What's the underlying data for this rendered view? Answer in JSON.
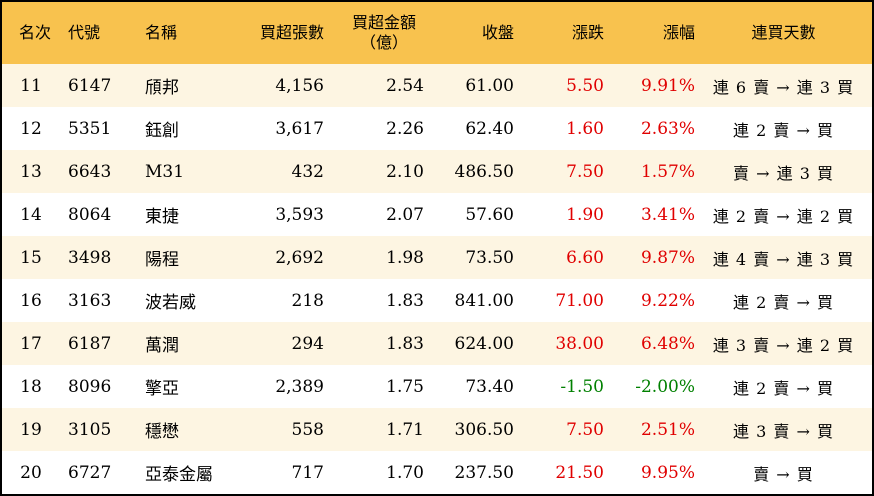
{
  "headers": {
    "rank": "名次",
    "code": "代號",
    "name": "名稱",
    "shares": "買超張數",
    "amount_l1": "買超金額",
    "amount_l2": "（億）",
    "close": "收盤",
    "change": "漲跌",
    "pct": "漲幅",
    "days": "連買天數"
  },
  "colors": {
    "header_bg": "#F8C24E",
    "row_alt_bg": "#FDF5E2",
    "up": "#E00000",
    "down": "#008000"
  },
  "rows": [
    {
      "rank": "11",
      "code": "6147",
      "name": "頎邦",
      "shares": "4,156",
      "amount": "2.54",
      "close": "61.00",
      "change": "5.50",
      "pct": "9.91%",
      "days": "連 6 賣 → 連 3 買",
      "dir": "up"
    },
    {
      "rank": "12",
      "code": "5351",
      "name": "鈺創",
      "shares": "3,617",
      "amount": "2.26",
      "close": "62.40",
      "change": "1.60",
      "pct": "2.63%",
      "days": "連 2 賣 → 買",
      "dir": "up"
    },
    {
      "rank": "13",
      "code": "6643",
      "name": "M31",
      "shares": "432",
      "amount": "2.10",
      "close": "486.50",
      "change": "7.50",
      "pct": "1.57%",
      "days": "賣 → 連 3 買",
      "dir": "up"
    },
    {
      "rank": "14",
      "code": "8064",
      "name": "東捷",
      "shares": "3,593",
      "amount": "2.07",
      "close": "57.60",
      "change": "1.90",
      "pct": "3.41%",
      "days": "連 2 賣 → 連 2 買",
      "dir": "up"
    },
    {
      "rank": "15",
      "code": "3498",
      "name": "陽程",
      "shares": "2,692",
      "amount": "1.98",
      "close": "73.50",
      "change": "6.60",
      "pct": "9.87%",
      "days": "連 4 賣 → 連 3 買",
      "dir": "up"
    },
    {
      "rank": "16",
      "code": "3163",
      "name": "波若威",
      "shares": "218",
      "amount": "1.83",
      "close": "841.00",
      "change": "71.00",
      "pct": "9.22%",
      "days": "連 2 賣 → 買",
      "dir": "up"
    },
    {
      "rank": "17",
      "code": "6187",
      "name": "萬潤",
      "shares": "294",
      "amount": "1.83",
      "close": "624.00",
      "change": "38.00",
      "pct": "6.48%",
      "days": "連 3 賣 → 連 2 買",
      "dir": "up"
    },
    {
      "rank": "18",
      "code": "8096",
      "name": "擎亞",
      "shares": "2,389",
      "amount": "1.75",
      "close": "73.40",
      "change": "-1.50",
      "pct": "-2.00%",
      "days": "連 2 賣 → 買",
      "dir": "down"
    },
    {
      "rank": "19",
      "code": "3105",
      "name": "穩懋",
      "shares": "558",
      "amount": "1.71",
      "close": "306.50",
      "change": "7.50",
      "pct": "2.51%",
      "days": "連 3 賣 → 買",
      "dir": "up"
    },
    {
      "rank": "20",
      "code": "6727",
      "name": "亞泰金屬",
      "shares": "717",
      "amount": "1.70",
      "close": "237.50",
      "change": "21.50",
      "pct": "9.95%",
      "days": "賣 → 買",
      "dir": "up"
    }
  ]
}
